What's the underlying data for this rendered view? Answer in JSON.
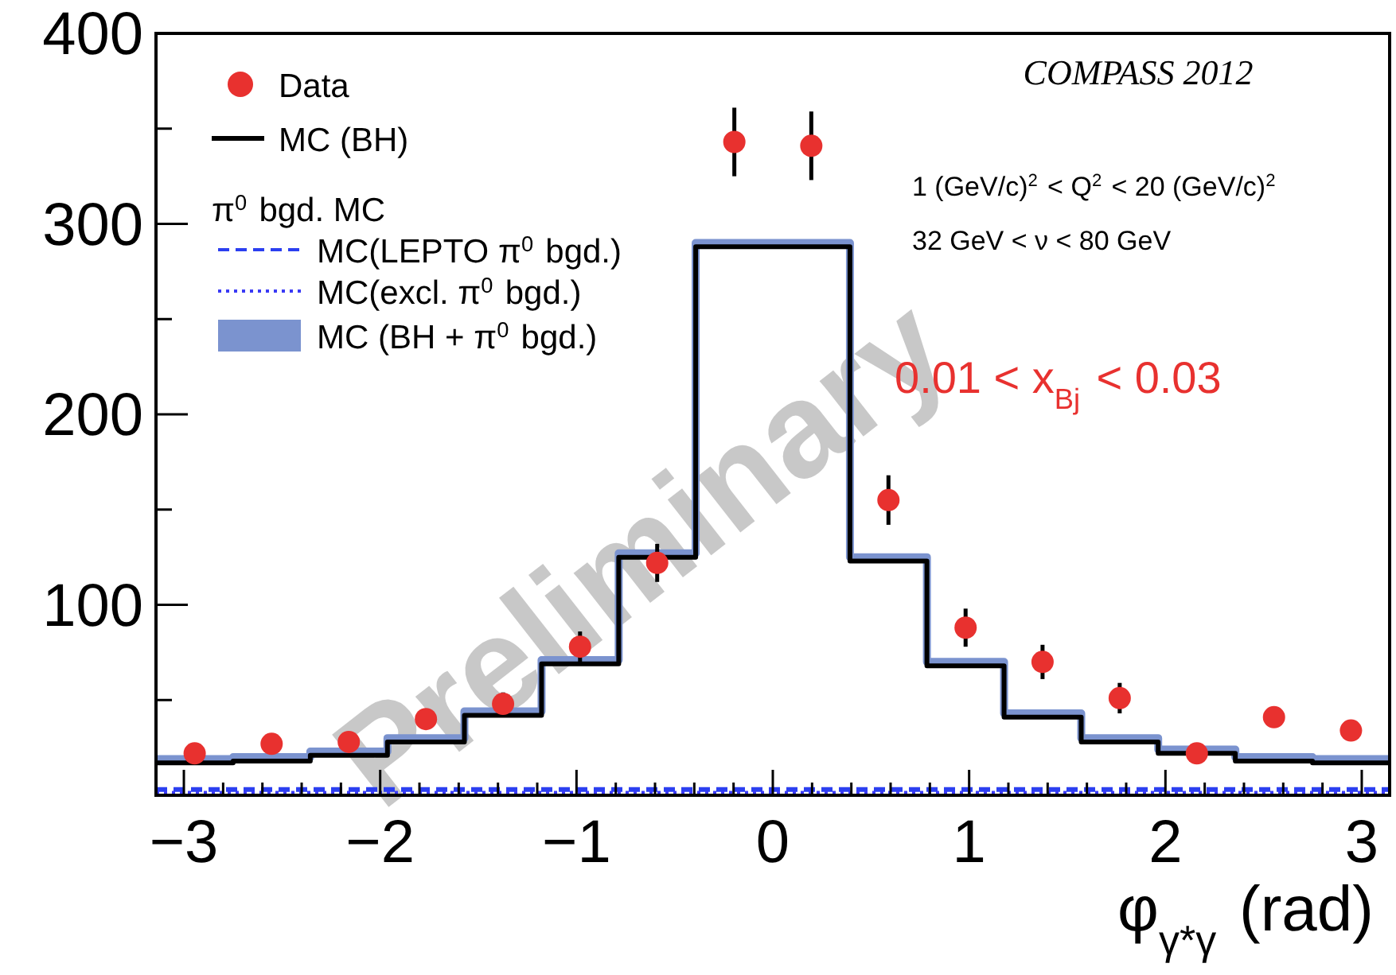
{
  "chart_data": {
    "type": "histogram",
    "bins": [
      -3.142,
      -2.749,
      -2.356,
      -1.963,
      -1.571,
      -1.178,
      -0.785,
      -0.393,
      0,
      0.393,
      0.785,
      1.178,
      1.571,
      1.963,
      2.356,
      2.749,
      3.142
    ],
    "xlim": [
      -3.142,
      3.142
    ],
    "ylim": [
      0,
      400
    ],
    "xticks": [
      {
        "value": -3,
        "label": "−3"
      },
      {
        "value": -2.8,
        "label": null
      },
      {
        "value": -2.6,
        "label": null
      },
      {
        "value": -2.4,
        "label": null
      },
      {
        "value": -2.2,
        "label": null
      },
      {
        "value": -2,
        "label": "−2"
      },
      {
        "value": -1.8,
        "label": null
      },
      {
        "value": -1.6,
        "label": null
      },
      {
        "value": -1.4,
        "label": null
      },
      {
        "value": -1.2,
        "label": null
      },
      {
        "value": -1,
        "label": "−1"
      },
      {
        "value": -0.8,
        "label": null
      },
      {
        "value": -0.6,
        "label": null
      },
      {
        "value": -0.4,
        "label": null
      },
      {
        "value": -0.2,
        "label": null
      },
      0,
      {
        "value": 0.2,
        "label": null
      },
      {
        "value": 0.4,
        "label": null
      },
      {
        "value": 0.6,
        "label": null
      },
      {
        "value": 0.8,
        "label": null
      },
      1,
      {
        "value": 1.2,
        "label": null
      },
      {
        "value": 1.4,
        "label": null
      },
      {
        "value": 1.6,
        "label": null
      },
      {
        "value": 1.8,
        "label": null
      },
      2,
      {
        "value": 2.2,
        "label": null
      },
      {
        "value": 2.4,
        "label": null
      },
      {
        "value": 2.6,
        "label": null
      },
      {
        "value": 2.8,
        "label": null
      },
      3
    ],
    "yticks": [
      {
        "value": 50,
        "label": null
      },
      100,
      {
        "value": 150,
        "label": null
      },
      200,
      {
        "value": 250,
        "label": null
      },
      300,
      {
        "value": 350,
        "label": null
      },
      400
    ],
    "xlabel": "φ$_{γ*γ}$ (rad)",
    "legend": "top left",
    "annotations": [
      "COMPASS 2012",
      "1 (GeV/c)$^{2}$ < Q$^{2}$ < 20 (GeV/c)$^{2}$",
      "32 GeV < ν < 80 GeV",
      "0.01 < x$_{Bj}$ < 0.03",
      "Preliminary",
      "π$^{0}$ bgd. MC"
    ],
    "series": [
      {
        "name": "Data",
        "type": "scatter",
        "color": "#e8312f",
        "marker": "circle",
        "x": [
          -2.945,
          -2.553,
          -2.16,
          -1.767,
          -1.374,
          -0.982,
          -0.589,
          -0.196,
          0.196,
          0.589,
          0.982,
          1.374,
          1.767,
          2.16,
          2.553,
          2.945
        ],
        "values": [
          22,
          27,
          28,
          40,
          48,
          78,
          122,
          343,
          341,
          155,
          88,
          70,
          51,
          22,
          41,
          34
        ],
        "errors": [
          null,
          null,
          null,
          null,
          6,
          8,
          10,
          18,
          18,
          13,
          10,
          9,
          8,
          null,
          null,
          null
        ]
      },
      {
        "name": "MC (BH)",
        "color": "#000000",
        "line_style": "solid",
        "values": [
          17,
          18,
          21,
          28,
          42,
          69,
          125,
          288,
          288,
          123,
          68,
          41,
          28,
          22,
          18,
          17
        ]
      },
      {
        "name": "MC(LEPTO π$^{0}$ bgd.)",
        "color": "#2b3ff0",
        "line_style": "dashed",
        "values": [
          3,
          3,
          3,
          3,
          3,
          3,
          3,
          3,
          3,
          3,
          3,
          3,
          3,
          3,
          3,
          3
        ]
      },
      {
        "name": "MC(excl. π$^{0}$ bgd.)",
        "color": "#3a3af5",
        "line_style": "dotted",
        "values": [
          1,
          1,
          1,
          1,
          1,
          1,
          1,
          1,
          1,
          1,
          1,
          1,
          1,
          1,
          1,
          1
        ]
      },
      {
        "name": "MC (BH + π$^{0}$ bgd.)",
        "color": "#7b93cf",
        "line_style": "solid",
        "values": [
          19,
          20,
          23,
          30,
          44,
          71,
          127,
          290,
          290,
          125,
          70,
          43,
          30,
          24,
          20,
          19
        ]
      }
    ]
  }
}
